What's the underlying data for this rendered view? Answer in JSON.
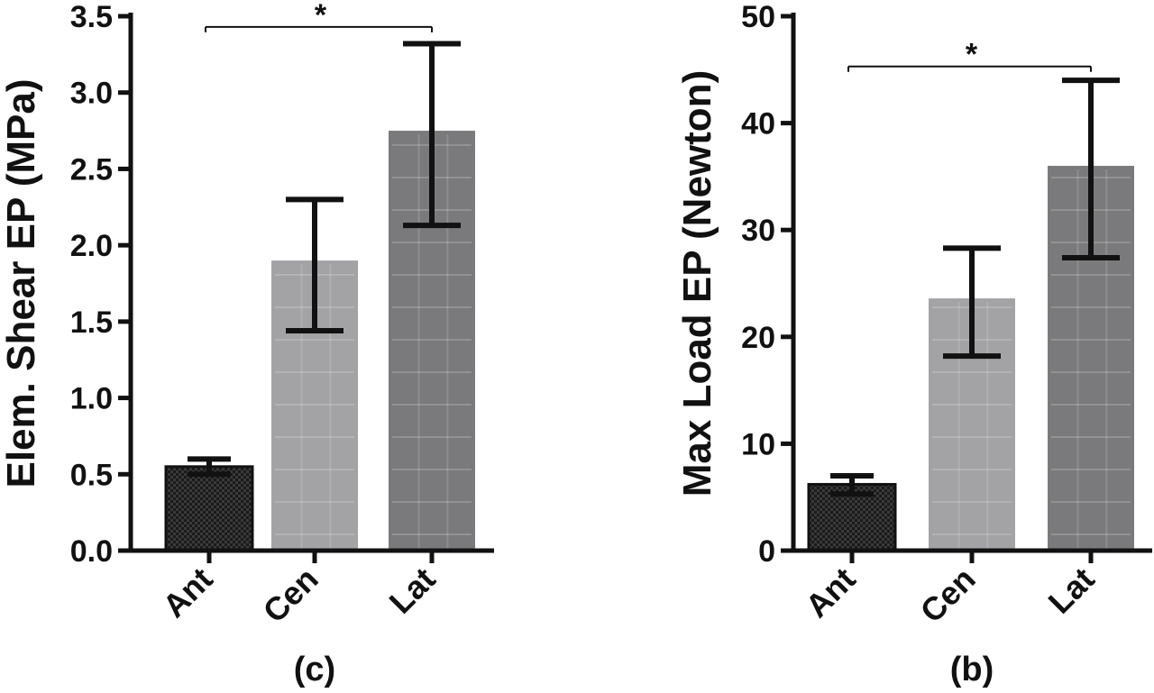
{
  "chart_data": [
    {
      "type": "bar",
      "panel_label": "(c)",
      "ylabel": "Elem. Shear EP (MPa)",
      "xlabel": "",
      "categories": [
        "Ant",
        "Cen",
        "Lat"
      ],
      "values": [
        0.55,
        1.9,
        2.75
      ],
      "error_upper": [
        0.6,
        2.3,
        3.32
      ],
      "error_lower": [
        0.5,
        1.44,
        2.13
      ],
      "ylim": [
        0,
        3.5
      ],
      "yticks": [
        0.0,
        0.5,
        1.0,
        1.5,
        2.0,
        2.5,
        3.0,
        3.5
      ],
      "ytick_labels": [
        "0.0",
        "0.5",
        "1.0",
        "1.5",
        "2.0",
        "2.5",
        "3.0",
        "3.5"
      ],
      "bar_colors": [
        "#2b2b2b",
        "#a3a3a6",
        "#7a7a7c"
      ],
      "significance": {
        "from": "Ant",
        "to": "Lat",
        "level": 3.43,
        "label": "*"
      },
      "grid": false,
      "legend": "none"
    },
    {
      "type": "bar",
      "panel_label": "(b)",
      "ylabel": "Max Load EP (Newton)",
      "xlabel": "",
      "categories": [
        "Ant",
        "Cen",
        "Lat"
      ],
      "values": [
        6.2,
        23.6,
        36
      ],
      "error_upper": [
        7,
        28.3,
        44
      ],
      "error_lower": [
        5.3,
        18.2,
        27.4
      ],
      "ylim": [
        0,
        50
      ],
      "yticks": [
        0,
        10,
        20,
        30,
        40,
        50
      ],
      "ytick_labels": [
        "0",
        "10",
        "20",
        "30",
        "40",
        "50"
      ],
      "bar_colors": [
        "#2b2b2b",
        "#a3a3a6",
        "#7a7a7c"
      ],
      "significance": {
        "from": "Ant",
        "to": "Lat",
        "level": 45.3,
        "label": "*"
      },
      "grid": false,
      "legend": "none"
    }
  ]
}
